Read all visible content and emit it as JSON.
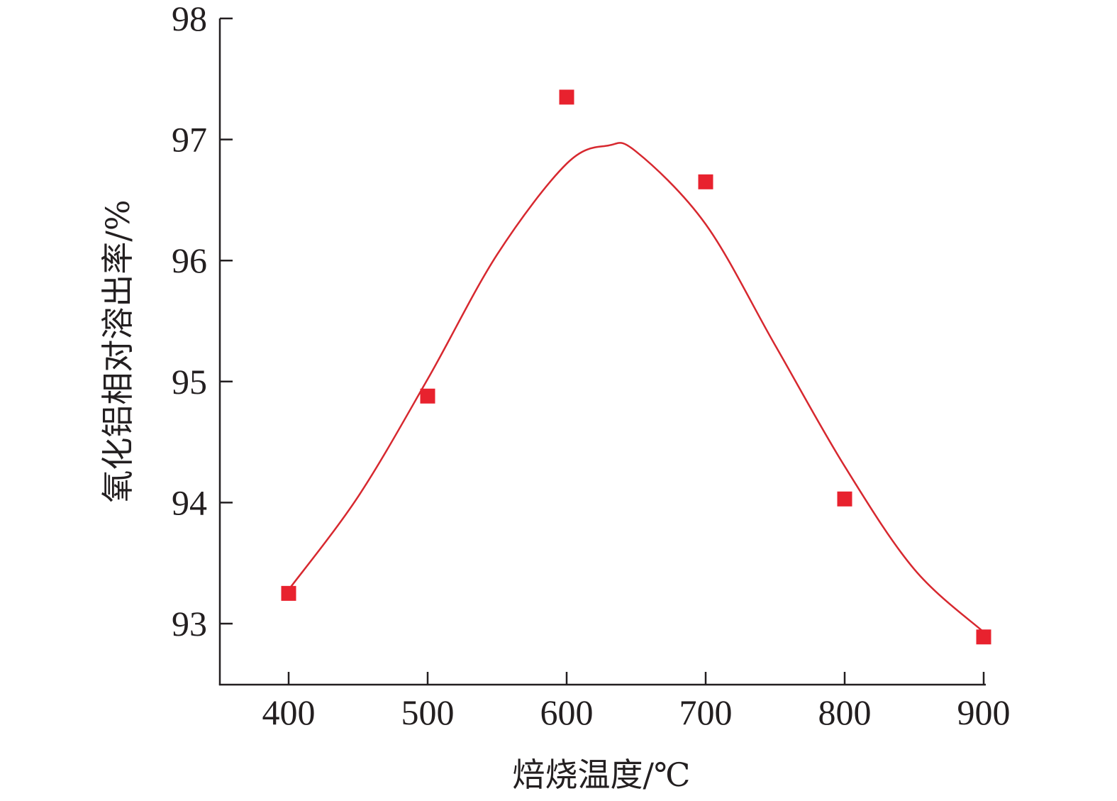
{
  "chart_data": {
    "type": "scatter",
    "title": "",
    "xlabel": "焙烧温度/℃",
    "ylabel": "氧化铝相对溶出率/%",
    "xlim": [
      350,
      900
    ],
    "ylim": [
      92.5,
      98
    ],
    "xticks": [
      400,
      500,
      600,
      700,
      800,
      900
    ],
    "yticks": [
      93,
      94,
      95,
      96,
      97,
      98
    ],
    "grid": false,
    "legend": "none",
    "series": [
      {
        "marker": "square",
        "color": "#e8222e",
        "x": [
          400,
          500,
          600,
          700,
          800,
          900
        ],
        "y": [
          93.25,
          94.88,
          97.35,
          96.65,
          94.03,
          92.89
        ]
      }
    ],
    "fit_curve": {
      "color": "#d7282f",
      "peak": {
        "x": 630,
        "y": 96.95
      },
      "x": [
        400,
        450,
        500,
        550,
        600,
        630,
        650,
        700,
        750,
        800,
        850,
        900
      ],
      "y": [
        93.28,
        94.05,
        95.02,
        96.05,
        96.8,
        96.95,
        96.9,
        96.3,
        95.3,
        94.3,
        93.45,
        92.93
      ]
    }
  }
}
